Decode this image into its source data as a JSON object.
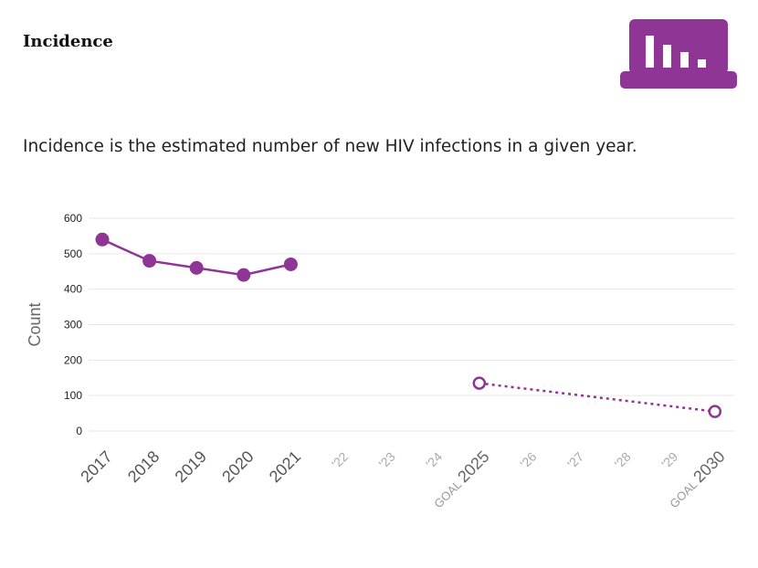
{
  "header": {
    "title": "Incidence",
    "icon": "bar-chart-icon",
    "icon_color": "#8e3596"
  },
  "description": "Incidence is the estimated number of new HIV infections in a given year.",
  "chart_data": {
    "type": "line",
    "ylabel": "Count",
    "ylim": [
      0,
      600
    ],
    "yticks": [
      0,
      100,
      200,
      300,
      400,
      500,
      600
    ],
    "grid": true,
    "color": "#8e3596",
    "x_ticks": [
      {
        "label": "2017",
        "kind": "actual"
      },
      {
        "label": "2018",
        "kind": "actual"
      },
      {
        "label": "2019",
        "kind": "actual"
      },
      {
        "label": "2020",
        "kind": "actual"
      },
      {
        "label": "2021",
        "kind": "actual"
      },
      {
        "label": "'22",
        "kind": "future"
      },
      {
        "label": "'23",
        "kind": "future"
      },
      {
        "label": "'24",
        "kind": "future"
      },
      {
        "label": "2025",
        "prefix": "GOAL",
        "kind": "goal"
      },
      {
        "label": "'26",
        "kind": "future"
      },
      {
        "label": "'27",
        "kind": "future"
      },
      {
        "label": "'28",
        "kind": "future"
      },
      {
        "label": "'29",
        "kind": "future"
      },
      {
        "label": "2030",
        "prefix": "GOAL",
        "kind": "goal"
      }
    ],
    "series": [
      {
        "style": "solid-filled",
        "x": [
          2017,
          2018,
          2019,
          2020,
          2021
        ],
        "values": [
          540,
          480,
          460,
          440,
          470
        ]
      },
      {
        "style": "dotted-open",
        "x": [
          2025,
          2030
        ],
        "values": [
          135,
          55
        ]
      }
    ]
  }
}
